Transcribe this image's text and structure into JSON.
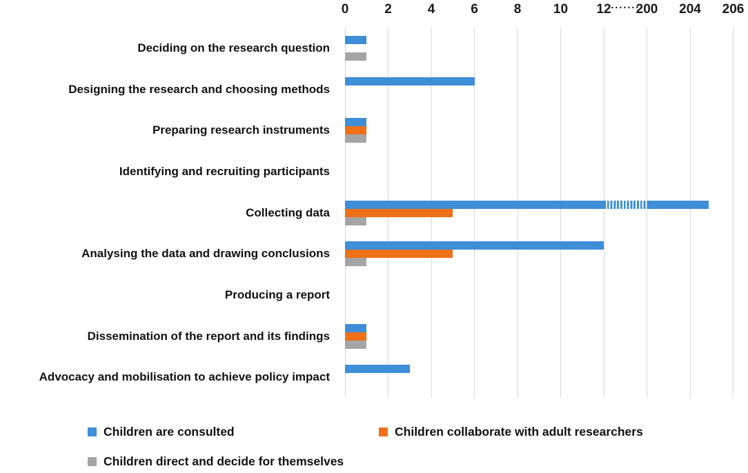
{
  "chart_data": {
    "type": "bar",
    "orientation": "horizontal",
    "title": "",
    "xlabel": "",
    "ylabel": "",
    "categories": [
      "Deciding on the research question",
      "Designing the research and choosing methods",
      "Preparing research instruments",
      "Identifying and recruiting participants",
      "Collecting data",
      "Analysing the data and drawing conclusions",
      "Producing a report",
      "Dissemination of the report and its findings",
      "Advocacy and mobilisation to achieve policy impact"
    ],
    "series": [
      {
        "name": "Children are consulted",
        "color": "#3E8ED8",
        "values": [
          1,
          6,
          1,
          0,
          205,
          12,
          0,
          1,
          3
        ]
      },
      {
        "name": "Children collaborate with adult researchers",
        "color": "#EE7118",
        "values": [
          0,
          0,
          1,
          0,
          5,
          5,
          0,
          1,
          0
        ]
      },
      {
        "name": "Children direct and decide for themselves",
        "color": "#A5A5A5",
        "values": [
          1,
          0,
          1,
          0,
          1,
          1,
          0,
          1,
          0
        ]
      }
    ],
    "x_axis": {
      "position": "top",
      "tick_labels": [
        "0",
        "2",
        "4",
        "6",
        "8",
        "10",
        "12",
        "200",
        "204",
        "206"
      ],
      "tick_values": [
        0,
        2,
        4,
        6,
        8,
        10,
        12,
        200,
        204,
        206
      ],
      "break_symbol": "·······",
      "break_between": [
        12,
        200
      ],
      "gridlines": true
    },
    "legend": {
      "position": "bottom",
      "entries": [
        "Children are consulted",
        "Children collaborate with adult researchers",
        "Children direct and decide for themselves"
      ]
    },
    "gridline_color": "#d8d8d8",
    "background_color": "#ffffff"
  }
}
